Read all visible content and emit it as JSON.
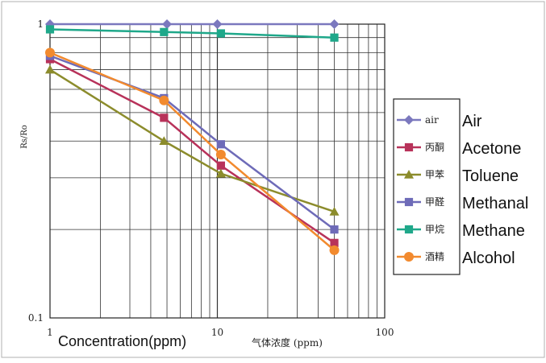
{
  "chart_data": {
    "type": "line",
    "xscale": "log",
    "yscale": "log",
    "xlim": [
      1,
      100
    ],
    "ylim": [
      0.1,
      1
    ],
    "grid": true,
    "legend_placement": "right",
    "ylabel": "Rs/Ro",
    "xlabel": "Concentration(ppm)",
    "xlabel_cn": "气体浓度 (ppm)",
    "x_ticks": [
      {
        "value": 1,
        "label": "1"
      },
      {
        "value": 10,
        "label": "10"
      },
      {
        "value": 100,
        "label": "100"
      }
    ],
    "y_ticks": [
      {
        "value": 1,
        "label": "1"
      },
      {
        "value": 0.1,
        "label": "0.1"
      }
    ],
    "series": [
      {
        "name": "air",
        "label_en": "Air",
        "color": "#7B78BE",
        "marker": "diamond",
        "points": [
          [
            1,
            1.0
          ],
          [
            5,
            1.0
          ],
          [
            10,
            1.0
          ],
          [
            50,
            1.0
          ]
        ]
      },
      {
        "name": "丙酮",
        "label_en": "Acetone",
        "color": "#B8325A",
        "marker": "square",
        "points": [
          [
            1,
            0.76
          ],
          [
            4.8,
            0.48
          ],
          [
            10.5,
            0.33
          ],
          [
            50,
            0.18
          ]
        ]
      },
      {
        "name": "甲苯",
        "label_en": "Toluene",
        "color": "#8C8C2C",
        "marker": "triangle",
        "points": [
          [
            1,
            0.7
          ],
          [
            4.8,
            0.4
          ],
          [
            10.5,
            0.31
          ],
          [
            50,
            0.23
          ]
        ]
      },
      {
        "name": "甲醛",
        "label_en": "Methanal",
        "color": "#6E6BB8",
        "marker": "square",
        "points": [
          [
            1,
            0.78
          ],
          [
            4.8,
            0.56
          ],
          [
            10.5,
            0.39
          ],
          [
            50,
            0.2
          ]
        ]
      },
      {
        "name": "甲烷",
        "label_en": "Methane",
        "color": "#1FA88A",
        "marker": "square",
        "points": [
          [
            1,
            0.96
          ],
          [
            4.8,
            0.94
          ],
          [
            10.5,
            0.93
          ],
          [
            50,
            0.9
          ]
        ]
      },
      {
        "name": "酒精",
        "label_en": "Alcohol",
        "color": "#F28A2E",
        "marker": "circle",
        "points": [
          [
            1,
            0.8
          ],
          [
            4.8,
            0.55
          ],
          [
            10.5,
            0.36
          ],
          [
            50,
            0.17
          ]
        ]
      }
    ]
  }
}
